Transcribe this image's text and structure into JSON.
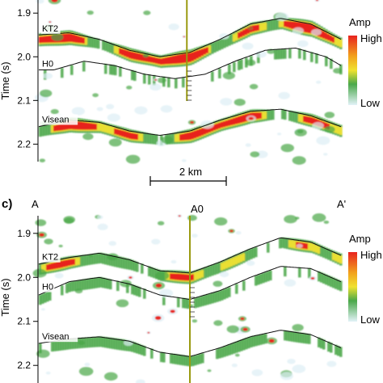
{
  "scale_bar": {
    "label": "2 km"
  },
  "colors": {
    "high": "#e8231f",
    "mid": "#48a646",
    "low": "#ddeef5",
    "marker": "#9a9a10"
  },
  "chart_data": [
    {
      "type": "heatmap",
      "panel": "upper",
      "ylabel": "Time (s)",
      "yticks": [
        1.9,
        2.0,
        2.1,
        2.2
      ],
      "ylim": [
        1.87,
        2.24
      ],
      "xlim": [
        0,
        1
      ],
      "marker_x": 0.49,
      "legend": {
        "title": "Amp",
        "high": "High",
        "low": "Low"
      },
      "horizons": [
        {
          "name": "KT2",
          "points": [
            [
              0,
              1.95
            ],
            [
              0.1,
              1.945
            ],
            [
              0.2,
              1.96
            ],
            [
              0.3,
              1.985
            ],
            [
              0.4,
              2.0
            ],
            [
              0.5,
              1.99
            ],
            [
              0.6,
              1.96
            ],
            [
              0.7,
              1.925
            ],
            [
              0.8,
              1.912
            ],
            [
              0.9,
              1.925
            ],
            [
              1,
              1.96
            ]
          ],
          "amp": 1.0
        },
        {
          "name": "H0",
          "points": [
            [
              0.05,
              2.03
            ],
            [
              0.15,
              2.01
            ],
            [
              0.25,
              2.02
            ],
            [
              0.35,
              2.04
            ],
            [
              0.45,
              2.05
            ],
            [
              0.55,
              2.04
            ],
            [
              0.65,
              2.01
            ],
            [
              0.75,
              1.985
            ],
            [
              0.85,
              1.98
            ],
            [
              0.95,
              2.0
            ],
            [
              1,
              2.02
            ]
          ],
          "amp": 0.0
        },
        {
          "name": "Visean",
          "points": [
            [
              0,
              2.16
            ],
            [
              0.1,
              2.145
            ],
            [
              0.2,
              2.15
            ],
            [
              0.3,
              2.17
            ],
            [
              0.4,
              2.18
            ],
            [
              0.5,
              2.17
            ],
            [
              0.6,
              2.145
            ],
            [
              0.7,
              2.125
            ],
            [
              0.8,
              2.12
            ],
            [
              0.9,
              2.135
            ],
            [
              1,
              2.16
            ]
          ],
          "amp": 0.85
        }
      ]
    },
    {
      "type": "heatmap",
      "panel": "c",
      "panel_label": "c)",
      "ylabel": "Time (s)",
      "yticks": [
        1.9,
        2.0,
        2.1,
        2.2
      ],
      "ylim": [
        1.86,
        2.24
      ],
      "xlim": [
        0,
        1
      ],
      "marker_x": 0.5,
      "endpoints": {
        "left": "A",
        "center": "A0",
        "right": "A'"
      },
      "legend": {
        "title": "Amp",
        "high": "High",
        "low": "Low"
      },
      "horizons": [
        {
          "name": "KT2",
          "points": [
            [
              0,
              1.97
            ],
            [
              0.1,
              1.955
            ],
            [
              0.2,
              1.945
            ],
            [
              0.3,
              1.96
            ],
            [
              0.4,
              1.985
            ],
            [
              0.5,
              1.99
            ],
            [
              0.6,
              1.965
            ],
            [
              0.7,
              1.935
            ],
            [
              0.8,
              1.91
            ],
            [
              0.9,
              1.92
            ],
            [
              1,
              1.95
            ]
          ],
          "amp": 0.6
        },
        {
          "name": "H0",
          "points": [
            [
              0,
              2.04
            ],
            [
              0.1,
              2.01
            ],
            [
              0.2,
              2.0
            ],
            [
              0.3,
              2.015
            ],
            [
              0.4,
              2.04
            ],
            [
              0.5,
              2.05
            ],
            [
              0.6,
              2.03
            ],
            [
              0.7,
              2.0
            ],
            [
              0.8,
              1.975
            ],
            [
              0.9,
              1.98
            ],
            [
              1,
              2.01
            ]
          ],
          "amp": 0.25
        },
        {
          "name": "Visean",
          "points": [
            [
              0,
              2.15
            ],
            [
              0.1,
              2.14
            ],
            [
              0.2,
              2.135
            ],
            [
              0.3,
              2.145
            ],
            [
              0.4,
              2.17
            ],
            [
              0.5,
              2.18
            ],
            [
              0.6,
              2.16
            ],
            [
              0.7,
              2.135
            ],
            [
              0.8,
              2.12
            ],
            [
              0.9,
              2.13
            ],
            [
              1,
              2.16
            ]
          ],
          "amp": 0.35
        }
      ]
    }
  ]
}
